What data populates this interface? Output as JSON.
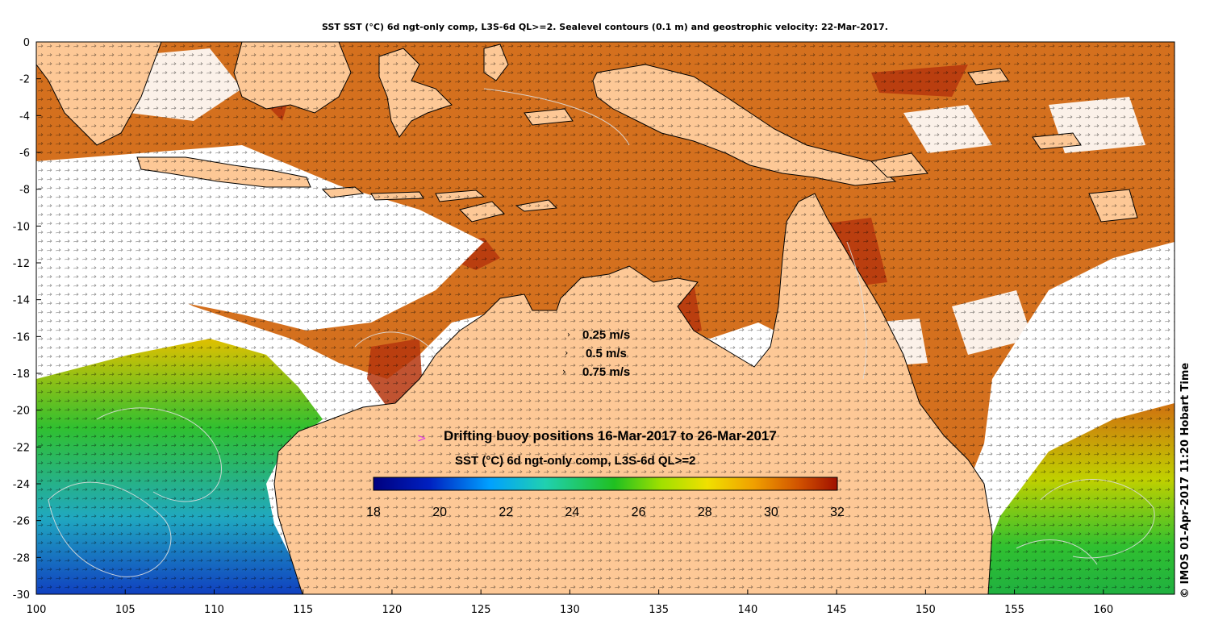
{
  "title": "SST SST (°C) 6d ngt-only comp, L3S-6d QL>=2. Sealevel contours (0.1 m) and geostrophic velocity: 22-Mar-2017.",
  "credit": "© IMOS 01-Apr-2017 11:20 Hobart Time",
  "axes": {
    "x_ticks": [
      "100",
      "105",
      "110",
      "115",
      "120",
      "125",
      "130",
      "135",
      "140",
      "145",
      "150",
      "155",
      "160"
    ],
    "y_ticks": [
      "0",
      "-2",
      "-4",
      "-6",
      "-8",
      "-10",
      "-12",
      "-14",
      "-16",
      "-18",
      "-20",
      "-22",
      "-24",
      "-26",
      "-28",
      "-30"
    ],
    "lon_range": [
      100,
      164
    ],
    "lat_range": [
      -30,
      0
    ]
  },
  "legend": {
    "velocity": [
      "0.25 m/s",
      "0.5 m/s",
      "0.75 m/s"
    ],
    "buoy_marker": ">",
    "buoy_text": "Drifting buoy positions 16-Mar-2017 to 26-Mar-2017",
    "buoy_color": "#e040e0",
    "colorbar_title": "SST (°C) 6d ngt-only comp, L3S-6d QL>=2",
    "colorbar_ticks": [
      "18",
      "20",
      "22",
      "24",
      "26",
      "28",
      "30",
      "32"
    ],
    "colorbar_range": [
      18,
      32
    ]
  },
  "colors": {
    "land": "#fdc896",
    "ocean_warm": "#d4701e",
    "ocean_hot": "#b5350d",
    "cloud": "#ffffff",
    "contour": "#dddddd"
  }
}
